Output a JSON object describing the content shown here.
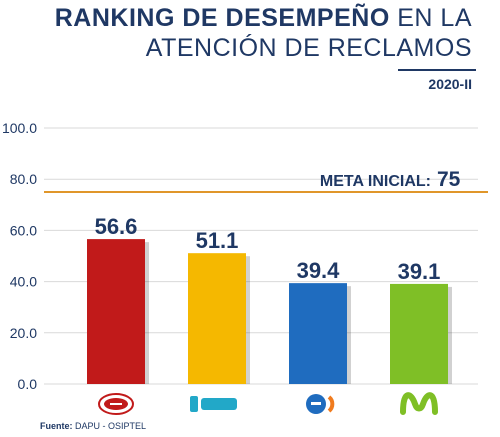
{
  "header": {
    "title_bold": "RANKING DE DESEMPEÑO",
    "title_rest": "EN LA",
    "title_line2": "ATENCIÓN DE RECLAMOS",
    "period": "2020-II"
  },
  "source": {
    "label": "Fuente:",
    "text": "DAPU - OSIPTEL"
  },
  "colors": {
    "claro": "#c11a1a",
    "bitel": "#f5b800",
    "entel": "#1f6cbf",
    "movistar": "#7fbf26",
    "target": "#e0962a",
    "title": "#1f3864",
    "grid": "#d9d9d9"
  },
  "chart_data": {
    "type": "bar",
    "categories": [
      "Claro",
      "bitel",
      "entel",
      "Movistar"
    ],
    "values": [
      56.6,
      51.1,
      39.4,
      39.1
    ],
    "value_labels": [
      "56.6",
      "51.1",
      "39.4",
      "39.1"
    ],
    "yticks": [
      "0.0",
      "20.0",
      "40.0",
      "60.0",
      "80.0",
      "100.0"
    ],
    "ylim": [
      0,
      100
    ],
    "grid": true,
    "legend": "none",
    "logos": [
      "claro-logo",
      "bitel-logo",
      "entel-logo",
      "movistar-logo"
    ],
    "target": {
      "value": 75,
      "label": "META INICIAL:",
      "value_label": "75"
    }
  }
}
